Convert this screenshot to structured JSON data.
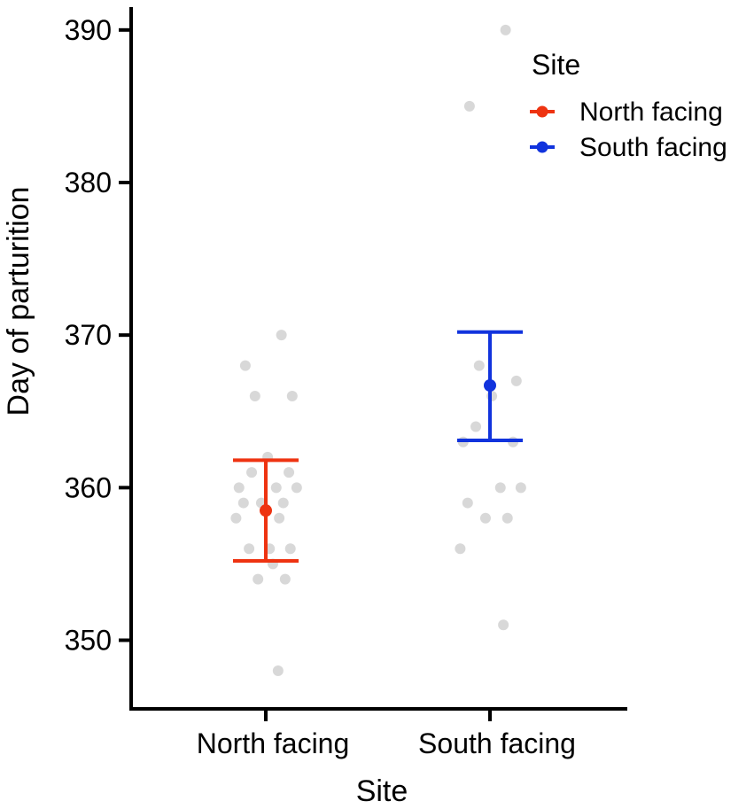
{
  "chart_data": {
    "type": "scatter",
    "xlabel": "Site",
    "ylabel": "Day of parturition",
    "categories": [
      "North facing",
      "South facing"
    ],
    "ylim": [
      345.5,
      391.5
    ],
    "yticks": [
      350,
      360,
      370,
      380,
      390
    ],
    "grid": false,
    "legend": {
      "title": "Site",
      "placement": "top-right",
      "entries": [
        "North facing",
        "South facing"
      ]
    },
    "series": [
      {
        "name": "North facing",
        "color": "#ee3311",
        "mean": 358.5,
        "lower": 355.2,
        "upper": 361.8,
        "points": [
          370,
          368,
          366,
          366,
          362,
          361,
          361,
          360,
          360,
          360,
          359,
          359,
          359,
          358,
          358,
          356,
          356,
          356,
          355,
          354,
          354,
          348
        ]
      },
      {
        "name": "South facing",
        "color": "#1133dd",
        "mean": 366.7,
        "lower": 363.1,
        "upper": 370.2,
        "points": [
          390,
          385,
          368,
          367,
          366,
          364,
          363,
          363,
          360,
          360,
          359,
          358,
          358,
          356,
          351
        ]
      }
    ],
    "point_color": "#d4d4d4"
  }
}
